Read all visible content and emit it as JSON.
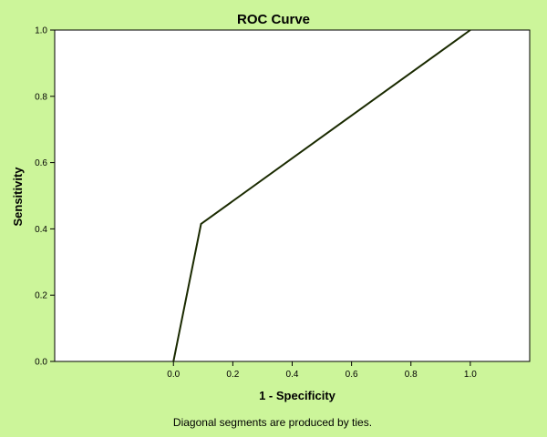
{
  "chart_data": {
    "type": "line",
    "title": "ROC Curve",
    "xlabel": "1 - Specificity",
    "ylabel": "Sensitivity",
    "xlim": [
      -0.4,
      1.2
    ],
    "ylim": [
      0.0,
      1.0
    ],
    "x_ticks": [
      "0.0",
      "0.2",
      "0.4",
      "0.6",
      "0.8",
      "1.0"
    ],
    "y_ticks": [
      "0.0",
      "0.2",
      "0.4",
      "0.6",
      "0.8",
      "1.0"
    ],
    "grid": false,
    "series": [
      {
        "x": [
          0.0,
          0.093,
          1.0
        ],
        "y": [
          0.0,
          0.415,
          1.0
        ]
      }
    ],
    "footnote": "Diagonal segments are produced by ties.",
    "colors": {
      "background": "#ccf59a",
      "plot_area": "#ffffff",
      "line": "#1a2a00"
    }
  }
}
